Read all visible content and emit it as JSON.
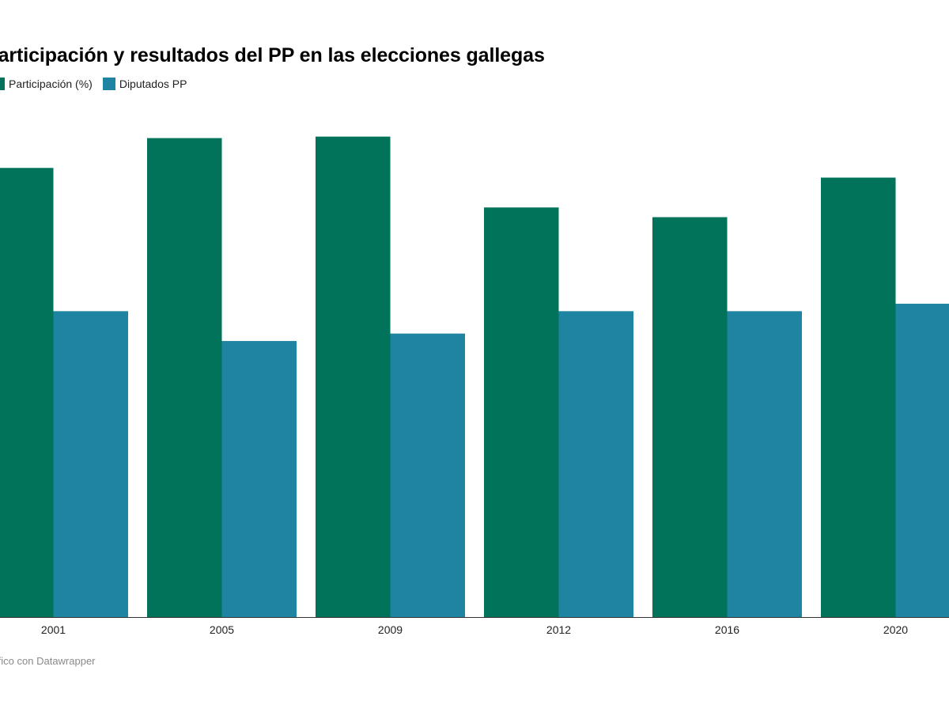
{
  "header": {
    "title": "Participación y resultados del PP en las elecciones gallegas"
  },
  "legend": [
    {
      "label": "Participación (%)",
      "color": "#00735a"
    },
    {
      "label": "Diputados PP",
      "color": "#1f83a2"
    }
  ],
  "footer": {
    "credit": "Gráfico con Datawrapper"
  },
  "chart_data": {
    "type": "bar",
    "title": "Participación y resultados del PP en las elecciones gallegas",
    "categories": [
      "2001",
      "2005",
      "2009",
      "2012",
      "2016",
      "2020"
    ],
    "series": [
      {
        "name": "Participación (%)",
        "color": "#00735a",
        "values": [
          60.2,
          64.2,
          64.4,
          54.9,
          53.6,
          58.9
        ]
      },
      {
        "name": "Diputados PP",
        "color": "#1f83a2",
        "values": [
          41,
          37,
          38,
          41,
          41,
          42
        ]
      }
    ],
    "xlabel": "",
    "ylabel": "",
    "ylim": [
      0,
      65
    ],
    "grid": false,
    "legend_position": "top-left"
  }
}
